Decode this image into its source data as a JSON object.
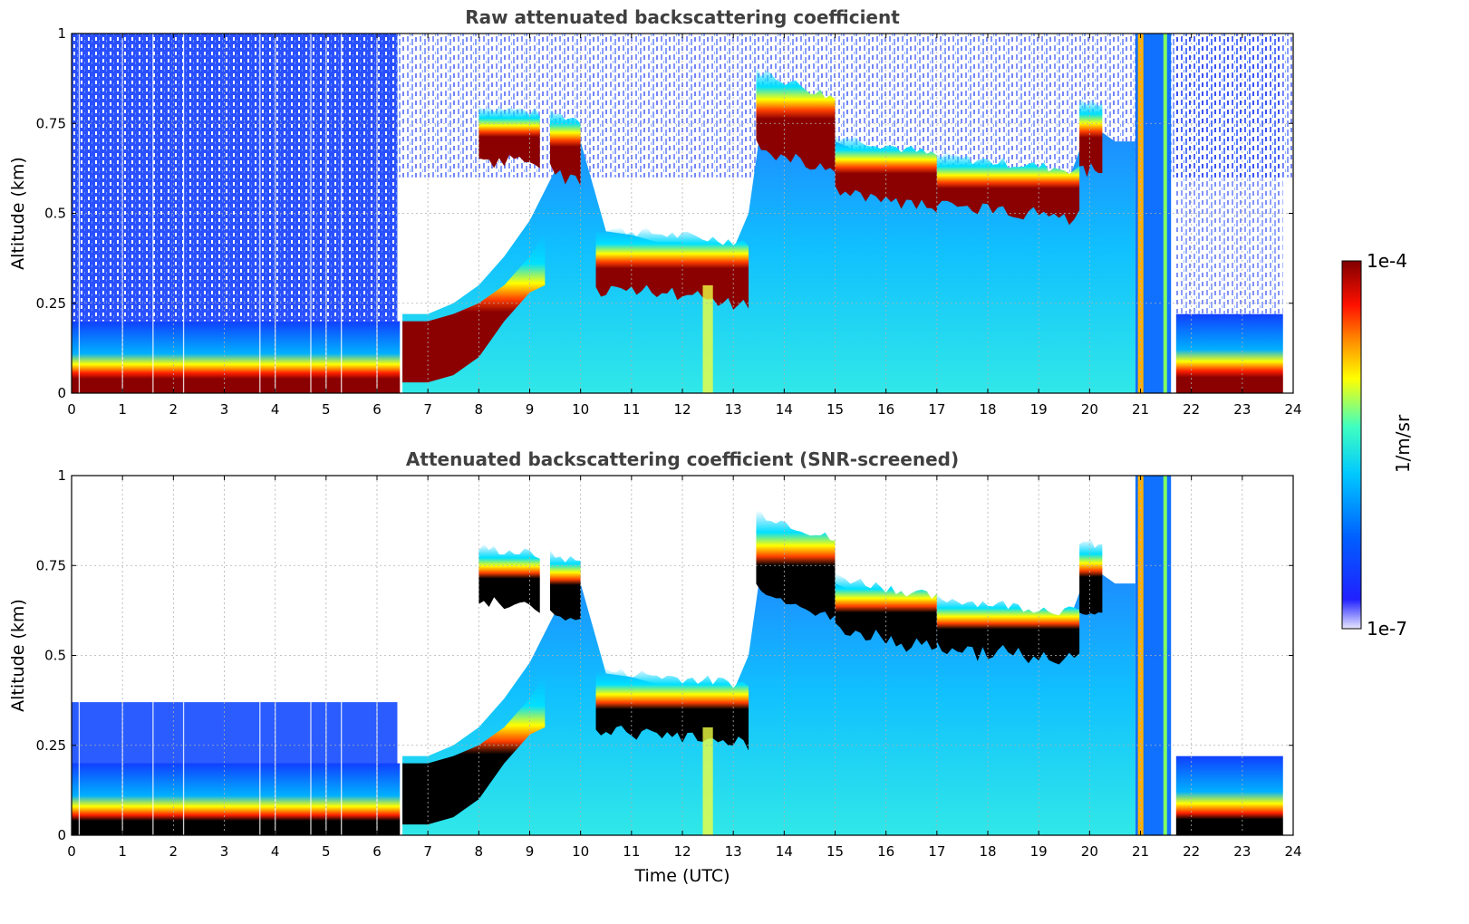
{
  "chart_data": [
    {
      "type": "heatmap",
      "title": "Raw attenuated backscattering coefficient",
      "xlabel": "",
      "ylabel": "Altitude (km)",
      "xlim": [
        0,
        24
      ],
      "ylim": [
        0,
        1
      ],
      "xticks": [
        "0",
        "1",
        "2",
        "3",
        "4",
        "5",
        "6",
        "7",
        "8",
        "9",
        "10",
        "11",
        "12",
        "13",
        "14",
        "15",
        "16",
        "17",
        "18",
        "19",
        "20",
        "21",
        "22",
        "23",
        "24"
      ],
      "yticks": [
        "0",
        "0.25",
        "0.5",
        "0.75",
        "1"
      ],
      "grid": true,
      "layers": [
        {
          "name": "",
          "x": [
            0,
            6.4
          ],
          "y_center": 0.08,
          "level": "max"
        },
        {
          "name": "",
          "x": [
            6.5,
            9.3
          ],
          "y_center": [
            0.1,
            0.35
          ],
          "level": "max"
        },
        {
          "name": "",
          "x": [
            8.0,
            10.0
          ],
          "y_center": 0.72,
          "level": "high"
        },
        {
          "name": "",
          "x": [
            10.3,
            13.3
          ],
          "y_center": 0.37,
          "level": "max"
        },
        {
          "name": "",
          "x": [
            13.5,
            15.0
          ],
          "y_center": 0.8,
          "level": "max"
        },
        {
          "name": "",
          "x": [
            15.0,
            20.0
          ],
          "y_center": [
            0.68,
            0.56
          ],
          "level": "max"
        },
        {
          "name": "",
          "x": [
            21.9,
            23.8
          ],
          "y_center": 0.09,
          "level": "max"
        }
      ]
    },
    {
      "type": "heatmap",
      "title": "Attenuated backscattering coefficient (SNR-screened)",
      "xlabel": "Time (UTC)",
      "ylabel": "Altitude (km)",
      "xlim": [
        0,
        24
      ],
      "ylim": [
        0,
        1
      ],
      "xticks": [
        "0",
        "1",
        "2",
        "3",
        "4",
        "5",
        "6",
        "7",
        "8",
        "9",
        "10",
        "11",
        "12",
        "13",
        "14",
        "15",
        "16",
        "17",
        "18",
        "19",
        "20",
        "21",
        "22",
        "23",
        "24"
      ],
      "yticks": [
        "0",
        "0.25",
        "0.5",
        "0.75",
        "1"
      ],
      "grid": true,
      "note_screening": "values above range shown black"
    }
  ],
  "colorbar": {
    "label": "1/m/sr",
    "max_label": "1e-4",
    "min_label": "1e-7",
    "colormap": [
      "#e8e8ff",
      "#0000ff",
      "#00a0ff",
      "#00ffff",
      "#80ff80",
      "#ffff00",
      "#ff8000",
      "#ff0000",
      "#800000"
    ]
  }
}
